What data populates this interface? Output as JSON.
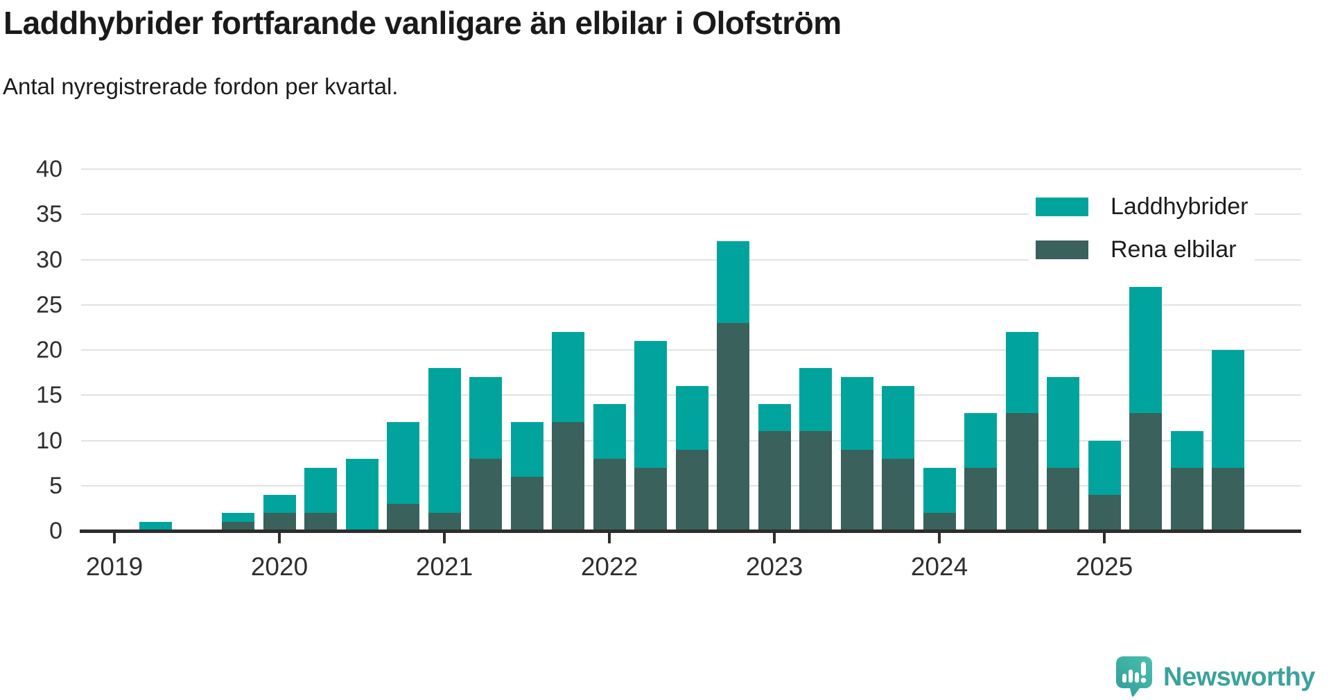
{
  "header": {
    "title": "Laddhybrider fortfarande vanligare än elbilar i Olofström",
    "subtitle": "Antal nyregistrerade fordon per kvartal."
  },
  "legend": {
    "items": [
      {
        "label": "Laddhybrider",
        "color": "#00a49c"
      },
      {
        "label": "Rena elbilar",
        "color": "#3a615c"
      }
    ]
  },
  "chart_data": {
    "type": "bar",
    "stacked": true,
    "title": "Laddhybrider fortfarande vanligare än elbilar i Olofström",
    "subtitle": "Antal nyregistrerade fordon per kvartal.",
    "categories": [
      "2019 Q1",
      "2019 Q2",
      "2019 Q3",
      "2019 Q4",
      "2020 Q1",
      "2020 Q2",
      "2020 Q3",
      "2020 Q4",
      "2021 Q1",
      "2021 Q2",
      "2021 Q3",
      "2021 Q4",
      "2022 Q1",
      "2022 Q2",
      "2022 Q3",
      "2022 Q4",
      "2023 Q1",
      "2023 Q2",
      "2023 Q3",
      "2023 Q4",
      "2024 Q1",
      "2024 Q2",
      "2024 Q3",
      "2024 Q4",
      "2025 Q1",
      "2025 Q2",
      "2025 Q3",
      "2025 Q4"
    ],
    "series": [
      {
        "name": "Rena elbilar",
        "color": "#3a615c",
        "stack_position": "bottom",
        "values": [
          0,
          0,
          0,
          1,
          2,
          2,
          0,
          3,
          2,
          8,
          6,
          12,
          8,
          7,
          9,
          23,
          11,
          11,
          9,
          8,
          2,
          7,
          13,
          7,
          4,
          13,
          7,
          7
        ]
      },
      {
        "name": "Laddhybrider",
        "color": "#00a49c",
        "stack_position": "top",
        "values": [
          0,
          1,
          0,
          1,
          2,
          5,
          8,
          9,
          16,
          9,
          6,
          10,
          6,
          14,
          7,
          9,
          3,
          7,
          8,
          8,
          5,
          6,
          9,
          10,
          6,
          14,
          4,
          13
        ]
      }
    ],
    "stacked_totals": [
      0,
      1,
      0,
      2,
      4,
      7,
      8,
      12,
      18,
      17,
      12,
      22,
      14,
      21,
      16,
      32,
      14,
      18,
      17,
      16,
      7,
      13,
      22,
      17,
      10,
      27,
      11,
      20
    ],
    "ylim": [
      0,
      40
    ],
    "yticks": [
      0,
      5,
      10,
      15,
      20,
      25,
      30,
      35,
      40
    ],
    "x_tick_labels": [
      "2019",
      "2020",
      "2021",
      "2022",
      "2023",
      "2024",
      "2025"
    ],
    "grid": true,
    "legend_position": "top-right"
  },
  "colors": {
    "laddhybrider": "#00a49c",
    "rena_elbilar": "#3a615c",
    "gridline": "#e2e2e2",
    "axis": "#2d2d2d",
    "brand_teal": "#3aa39b"
  },
  "footer": {
    "brand": "Newsworthy"
  }
}
